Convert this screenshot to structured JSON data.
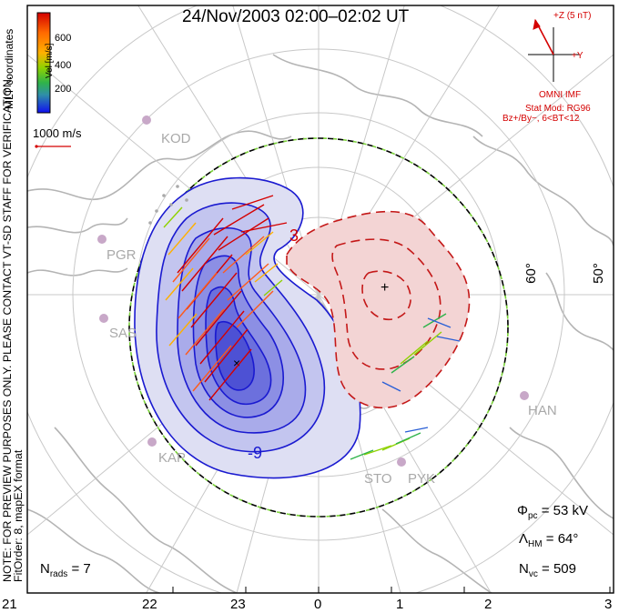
{
  "title": "24/Nov/2003 02:00–02:02 UT",
  "colorbar": {
    "label": "Vel [m/s]",
    "ticks": [
      "600",
      "400",
      "200"
    ],
    "colors": [
      "#d40000",
      "#ff5a1a",
      "#ffb000",
      "#8fd200",
      "#2fb34a",
      "#2f8fa8",
      "#2a5fd6",
      "#1010f0"
    ]
  },
  "coords_label": "MLT coordinates",
  "scale": {
    "label": "1000 m/s",
    "color": "#d40000"
  },
  "side_note_1": "NOTE: FOR PREVIEW PURPOSES ONLY. PLEASE CONTACT VT-SD STAFF FOR VERIFICATION.",
  "side_note_2": "FitOrder: 8, mapEX format",
  "imf": {
    "z_label": "+Z (5 nT)",
    "y_label": "+Y",
    "source": "OMNI IMF",
    "model": "Stat Mod: RG96",
    "model_params": "Bz+/By−, 6<BT<12"
  },
  "stations": [
    "KOD",
    "PGR",
    "SAS",
    "KAP",
    "STO",
    "PYK",
    "HAN"
  ],
  "contour_labels": [
    "3",
    "-9"
  ],
  "lat_labels": [
    "60°",
    "50°"
  ],
  "mlt_labels": [
    "21",
    "22",
    "23",
    "0",
    "1",
    "2",
    "3"
  ],
  "stats": {
    "phi_label": "Φ",
    "phi_sub": "pc",
    "phi_value": "= 53 kV",
    "lambda_label": "Λ",
    "lambda_sub": "HM",
    "lambda_value": "= 64°",
    "nvc_label": "N",
    "nvc_sub": "vc",
    "nvc_value": "= 509",
    "nrads_label": "N",
    "nrads_sub": "rads",
    "nrads_value": "= 7"
  }
}
